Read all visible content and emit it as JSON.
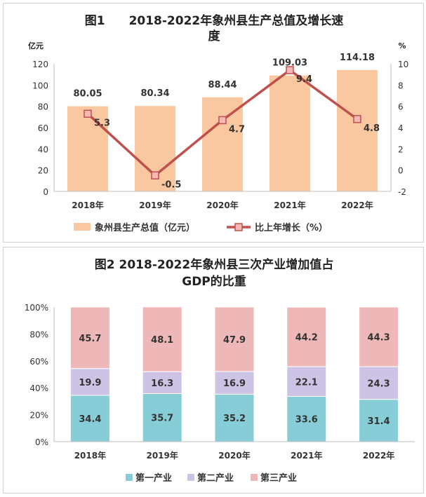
{
  "chart_data": [
    {
      "type": "bar+line",
      "title_line1": "图1　　2018-2022年象州县生产总值及增长速",
      "title_line2": "度",
      "y_left_unit": "亿元",
      "y_right_unit": "%",
      "categories": [
        "2018年",
        "2019年",
        "2020年",
        "2021年",
        "2022年"
      ],
      "y_left_ticks": [
        "0",
        "20",
        "40",
        "60",
        "80",
        "100",
        "120"
      ],
      "y_right_ticks": [
        "-2",
        "0",
        "2",
        "4",
        "6",
        "8",
        "10"
      ],
      "ylim_left": [
        0,
        120
      ],
      "ylim_right": [
        -2,
        10
      ],
      "series": [
        {
          "name": "象州县生产总值（亿元）",
          "kind": "bar",
          "axis": "left",
          "values": [
            80.05,
            80.34,
            88.44,
            109.03,
            114.18
          ],
          "labels": [
            "80.05",
            "80.34",
            "88.44",
            "109.03",
            "114.18"
          ]
        },
        {
          "name": "比上年增长（%）",
          "kind": "line",
          "axis": "right",
          "values": [
            5.3,
            -0.5,
            4.7,
            9.4,
            4.8
          ],
          "labels": [
            "5.3",
            "-0.5",
            "4.7",
            "9.4",
            "4.8"
          ]
        }
      ],
      "colors": {
        "bar": "#F9C8A0",
        "line": "#C0504D",
        "marker_fill": "#F2B8B6"
      },
      "legend_position": "bottom",
      "grid": false
    },
    {
      "type": "stacked-bar-100",
      "title_line1": "图2  2018-2022年象州县三次产业增加值占",
      "title_line2": "GDP的比重",
      "categories": [
        "2018年",
        "2019年",
        "2020年",
        "2021年",
        "2022年"
      ],
      "y_ticks": [
        "0%",
        "20%",
        "40%",
        "60%",
        "80%",
        "100%"
      ],
      "ylim": [
        0,
        100
      ],
      "series": [
        {
          "name": "第一产业",
          "values": [
            34.4,
            35.7,
            35.2,
            33.6,
            31.4
          ],
          "labels": [
            "34.4",
            "35.7",
            "35.2",
            "33.6",
            "31.4"
          ]
        },
        {
          "name": "第二产业",
          "values": [
            19.9,
            16.3,
            16.9,
            22.1,
            24.3
          ],
          "labels": [
            "19.9",
            "16.3",
            "16.9",
            "22.1",
            "24.3"
          ]
        },
        {
          "name": "第三产业",
          "values": [
            45.7,
            48.1,
            47.9,
            44.2,
            44.3
          ],
          "labels": [
            "45.7",
            "48.1",
            "47.9",
            "44.2",
            "44.3"
          ]
        }
      ],
      "colors": [
        "#87CDD8",
        "#CDC3E4",
        "#EFB8B8"
      ],
      "legend_position": "bottom",
      "grid": false
    }
  ]
}
